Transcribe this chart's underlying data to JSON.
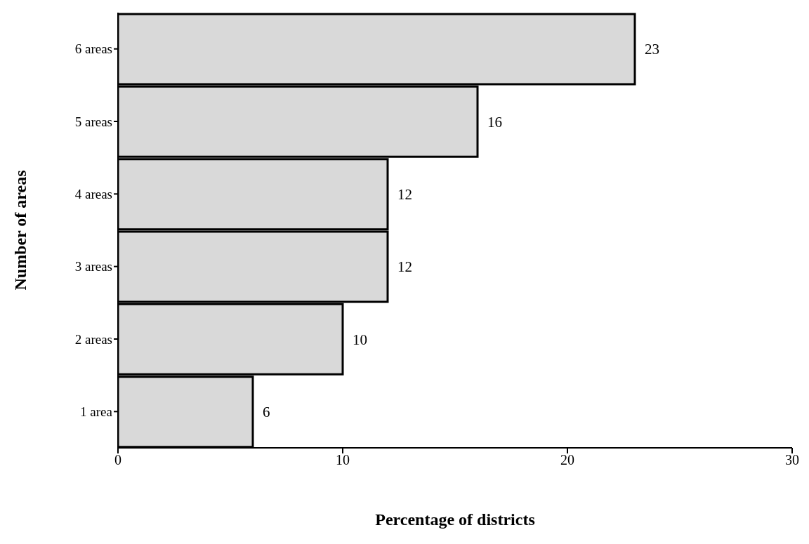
{
  "chart_data": {
    "type": "bar",
    "orientation": "horizontal",
    "categories": [
      "6 areas",
      "5 areas",
      "4 areas",
      "3 areas",
      "2 areas",
      "1 area"
    ],
    "values": [
      23,
      16,
      12,
      12,
      10,
      6
    ],
    "color": "#d9d9d9",
    "xlim": [
      0,
      30
    ],
    "xticks": [
      0,
      10,
      20,
      30
    ],
    "xlabel": "Percentage of districts",
    "ylabel": "Number of areas",
    "data_labels": true,
    "grid": false,
    "legend": false
  }
}
